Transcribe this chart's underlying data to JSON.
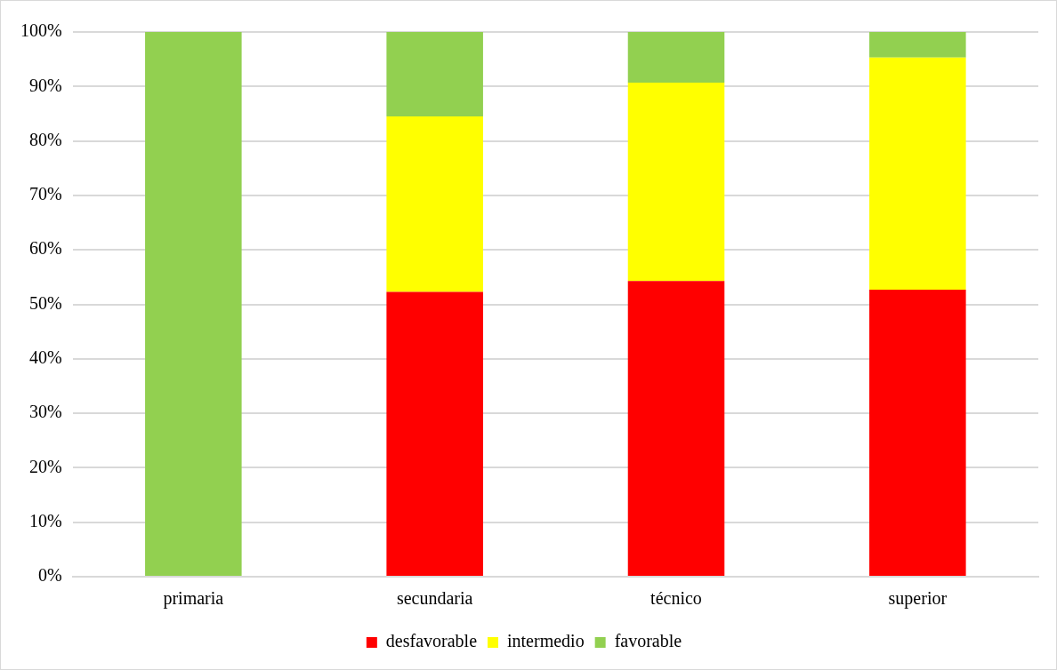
{
  "chart_data": {
    "type": "bar",
    "stacked": true,
    "categories": [
      "primaria",
      "secundaria",
      "técnico",
      "superior"
    ],
    "series": [
      {
        "name": "desfavorable",
        "color": "#ff0000",
        "values": [
          0,
          52.3,
          54.3,
          52.7
        ]
      },
      {
        "name": "intermedio",
        "color": "#ffff00",
        "values": [
          0,
          32.2,
          36.4,
          42.6
        ]
      },
      {
        "name": "favorable",
        "color": "#92d050",
        "values": [
          100,
          15.5,
          9.3,
          4.7
        ]
      }
    ],
    "ylim": [
      0,
      100
    ],
    "yticks": [
      {
        "value": 0,
        "label": "0%"
      },
      {
        "value": 10,
        "label": "10%"
      },
      {
        "value": 20,
        "label": "20%"
      },
      {
        "value": 30,
        "label": "30%"
      },
      {
        "value": 40,
        "label": "40%"
      },
      {
        "value": 50,
        "label": "50%"
      },
      {
        "value": 60,
        "label": "60%"
      },
      {
        "value": 70,
        "label": "70%"
      },
      {
        "value": 80,
        "label": "80%"
      },
      {
        "value": 90,
        "label": "90%"
      },
      {
        "value": 100,
        "label": "100%"
      }
    ],
    "grid": "y",
    "legend": "bottom"
  }
}
